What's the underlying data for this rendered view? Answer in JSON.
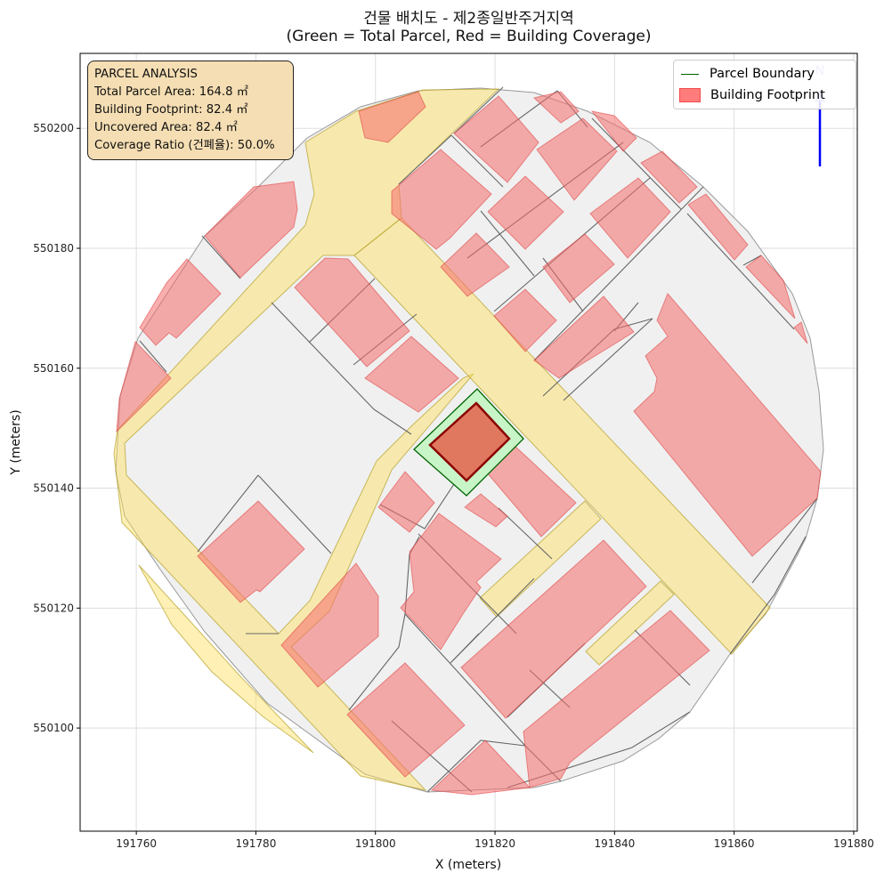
{
  "title": {
    "line1": "건물 배치도 - 제2종일반주거지역",
    "line2": "(Green = Total Parcel, Red = Building Coverage)"
  },
  "info_box": {
    "heading": "PARCEL ANALYSIS",
    "total_area": "Total Parcel Area: 164.8 ㎡",
    "footprint": "Building Footprint: 82.4 ㎡",
    "uncovered": "Uncovered Area: 82.4 ㎡",
    "coverage": "Coverage Ratio (건폐율): 50.0%"
  },
  "legend": {
    "placement": "top-right",
    "items": [
      {
        "label": "Parcel Boundary",
        "color": "#006400"
      },
      {
        "label": "Building Footprint",
        "color": "#ff7f7f"
      }
    ]
  },
  "north_arrow": {
    "label": "N",
    "color": "#0000ff"
  },
  "axes": {
    "xlabel": "X (meters)",
    "ylabel": "Y (meters)",
    "xlim": [
      191750.6,
      191880.6
    ],
    "ylim": [
      550082.8,
      550212.5
    ],
    "xticks": [
      "191760",
      "191780",
      "191800",
      "191820",
      "191840",
      "191860",
      "191880"
    ],
    "yticks": [
      "550100",
      "550120",
      "550140",
      "550160",
      "550180",
      "550200"
    ],
    "grid": true
  },
  "colors": {
    "parcel_fill": "#c8f5c8",
    "parcel_edge": "#006400",
    "selected_building": "#e07860",
    "selected_building_edge": "#8b0000",
    "road": "#fff0b0",
    "block": "#f0f0f0"
  }
}
